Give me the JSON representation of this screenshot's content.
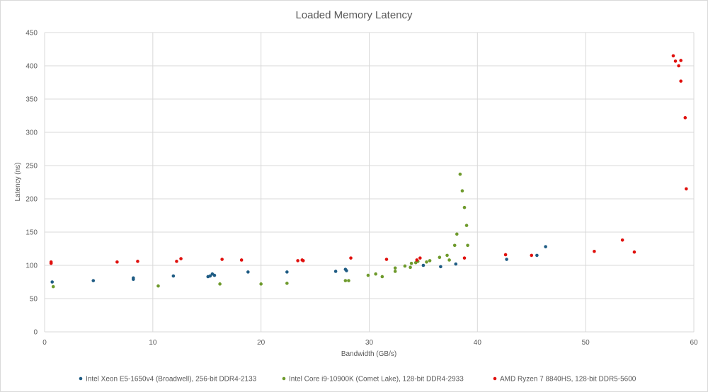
{
  "chart_data": {
    "type": "scatter",
    "title": "Loaded Memory Latency",
    "xlabel": "Bandwidth (GB/s)",
    "ylabel": "Latency (ns)",
    "xlim": [
      0,
      60
    ],
    "ylim": [
      0,
      450
    ],
    "xticks": [
      0,
      10,
      20,
      30,
      40,
      50,
      60
    ],
    "yticks": [
      0,
      50,
      100,
      150,
      200,
      250,
      300,
      350,
      400,
      450
    ],
    "grid": true,
    "legend": "bottom",
    "series": [
      {
        "name": "Intel Xeon E5-1650v4 (Broadwell), 256-bit DDR4-2133",
        "color": "#1f5c84",
        "points": [
          [
            0.7,
            75
          ],
          [
            4.5,
            77
          ],
          [
            8.2,
            81
          ],
          [
            8.2,
            79
          ],
          [
            11.9,
            84
          ],
          [
            15.1,
            83
          ],
          [
            15.3,
            84
          ],
          [
            15.5,
            87
          ],
          [
            15.7,
            85
          ],
          [
            18.8,
            90
          ],
          [
            22.4,
            90
          ],
          [
            26.9,
            91
          ],
          [
            27.8,
            94
          ],
          [
            27.9,
            92
          ],
          [
            35.0,
            100
          ],
          [
            36.6,
            98
          ],
          [
            38.0,
            102
          ],
          [
            42.7,
            109
          ],
          [
            45.5,
            115
          ],
          [
            46.3,
            128
          ]
        ]
      },
      {
        "name": "Intel Core i9-10900K (Comet Lake), 128-bit DDR4-2933",
        "color": "#6e9a2c",
        "points": [
          [
            0.8,
            68
          ],
          [
            10.5,
            69
          ],
          [
            16.2,
            72
          ],
          [
            20.0,
            72
          ],
          [
            22.4,
            73
          ],
          [
            27.8,
            77
          ],
          [
            28.1,
            77
          ],
          [
            29.9,
            85
          ],
          [
            30.6,
            87
          ],
          [
            31.2,
            83
          ],
          [
            32.4,
            91
          ],
          [
            32.4,
            96
          ],
          [
            33.3,
            99
          ],
          [
            33.8,
            97
          ],
          [
            33.9,
            103
          ],
          [
            34.3,
            104
          ],
          [
            34.5,
            106
          ],
          [
            35.3,
            105
          ],
          [
            35.6,
            107
          ],
          [
            36.5,
            112
          ],
          [
            37.2,
            115
          ],
          [
            37.4,
            108
          ],
          [
            37.9,
            130
          ],
          [
            38.1,
            147
          ],
          [
            38.4,
            237
          ],
          [
            38.6,
            212
          ],
          [
            38.8,
            187
          ],
          [
            39.0,
            160
          ],
          [
            39.1,
            130
          ]
        ]
      },
      {
        "name": "AMD Ryzen 7 8840HS, 128-bit DDR5-5600",
        "color": "#e0100d",
        "points": [
          [
            0.6,
            105
          ],
          [
            0.6,
            103
          ],
          [
            6.7,
            105
          ],
          [
            8.6,
            106
          ],
          [
            12.2,
            106
          ],
          [
            12.6,
            110
          ],
          [
            16.4,
            109
          ],
          [
            18.2,
            108
          ],
          [
            23.4,
            107
          ],
          [
            23.8,
            108
          ],
          [
            23.9,
            107
          ],
          [
            28.3,
            111
          ],
          [
            31.6,
            109
          ],
          [
            34.4,
            108
          ],
          [
            34.7,
            111
          ],
          [
            38.8,
            111
          ],
          [
            42.6,
            116
          ],
          [
            45.0,
            115
          ],
          [
            50.8,
            121
          ],
          [
            53.4,
            138
          ],
          [
            54.5,
            120
          ],
          [
            58.1,
            415
          ],
          [
            58.3,
            407
          ],
          [
            58.6,
            400
          ],
          [
            58.8,
            408
          ],
          [
            58.8,
            377
          ],
          [
            59.2,
            322
          ],
          [
            59.3,
            215
          ]
        ]
      }
    ]
  }
}
